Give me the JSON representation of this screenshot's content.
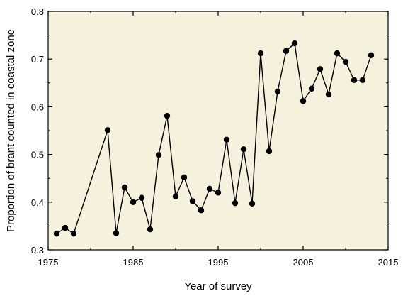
{
  "chart_data": {
    "type": "line",
    "title": "",
    "xlabel": "Year of survey",
    "ylabel": "Proportion of brant counted in coastal zone",
    "xlim": [
      1975,
      2015
    ],
    "ylim": [
      0.3,
      0.8
    ],
    "xticks": [
      "1975",
      "1985",
      "1995",
      "2005",
      "2015"
    ],
    "yticks": [
      "0.3",
      "0.4",
      "0.5",
      "0.6",
      "0.7",
      "0.8"
    ],
    "grid": false,
    "legend": "none",
    "colors": {
      "plot_background": "#f6f1dc",
      "line": "#000000",
      "marker": "#000000"
    },
    "series": [
      {
        "x": [
          1976,
          1977,
          1978,
          1982,
          1983,
          1984,
          1985,
          1986,
          1987,
          1988,
          1989,
          1990,
          1991,
          1992,
          1993,
          1994,
          1995,
          1996,
          1997,
          1998,
          1999,
          2000,
          2001,
          2002,
          2003,
          2004,
          2005,
          2006,
          2007,
          2008,
          2009,
          2010,
          2011,
          2012,
          2013
        ],
        "y": [
          0.334,
          0.346,
          0.334,
          0.551,
          0.335,
          0.431,
          0.4,
          0.409,
          0.343,
          0.499,
          0.581,
          0.412,
          0.452,
          0.402,
          0.383,
          0.428,
          0.42,
          0.531,
          0.398,
          0.511,
          0.397,
          0.712,
          0.507,
          0.632,
          0.717,
          0.733,
          0.612,
          0.638,
          0.679,
          0.626,
          0.712,
          0.694,
          0.656,
          0.656,
          0.708
        ]
      }
    ]
  }
}
